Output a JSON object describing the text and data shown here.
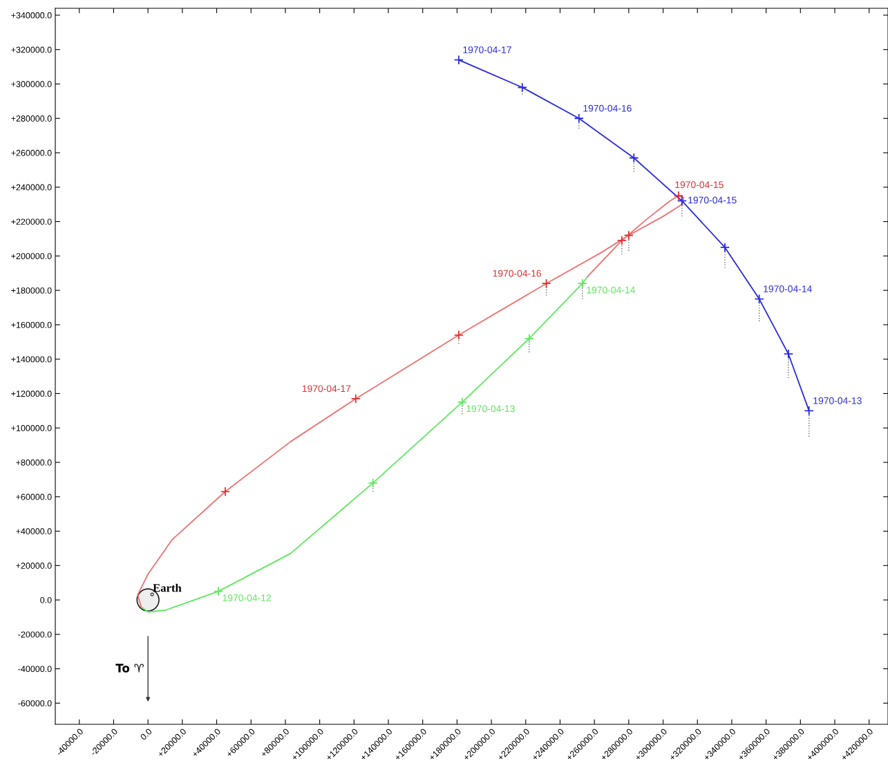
{
  "chart_data": {
    "type": "line",
    "xlim": [
      -54000,
      431000
    ],
    "ylim": [
      -72300,
      344000
    ],
    "xticks": [
      {
        "value": -40000,
        "label": "-40000.0"
      },
      {
        "value": -20000,
        "label": "-20000.0"
      },
      {
        "value": 0,
        "label": "0.0"
      },
      {
        "value": 20000,
        "label": "+20000.0"
      },
      {
        "value": 40000,
        "label": "+40000.0"
      },
      {
        "value": 60000,
        "label": "+60000.0"
      },
      {
        "value": 80000,
        "label": "+80000.0"
      },
      {
        "value": 100000,
        "label": "+100000.0"
      },
      {
        "value": 120000,
        "label": "+120000.0"
      },
      {
        "value": 140000,
        "label": "+140000.0"
      },
      {
        "value": 160000,
        "label": "+160000.0"
      },
      {
        "value": 180000,
        "label": "+180000.0"
      },
      {
        "value": 200000,
        "label": "+200000.0"
      },
      {
        "value": 220000,
        "label": "+220000.0"
      },
      {
        "value": 240000,
        "label": "+240000.0"
      },
      {
        "value": 260000,
        "label": "+260000.0"
      },
      {
        "value": 280000,
        "label": "+280000.0"
      },
      {
        "value": 300000,
        "label": "+300000.0"
      },
      {
        "value": 320000,
        "label": "+320000.0"
      },
      {
        "value": 340000,
        "label": "+340000.0"
      },
      {
        "value": 360000,
        "label": "+360000.0"
      },
      {
        "value": 380000,
        "label": "+380000.0"
      },
      {
        "value": 400000,
        "label": "+400000.0"
      },
      {
        "value": 420000,
        "label": "+420000.0"
      }
    ],
    "yticks": [
      {
        "value": -60000,
        "label": "-60000.0"
      },
      {
        "value": -40000,
        "label": "-40000.0"
      },
      {
        "value": -20000,
        "label": "-20000.0"
      },
      {
        "value": 0,
        "label": "0.0"
      },
      {
        "value": 20000,
        "label": "+20000.0"
      },
      {
        "value": 40000,
        "label": "+40000.0"
      },
      {
        "value": 60000,
        "label": "+60000.0"
      },
      {
        "value": 80000,
        "label": "+80000.0"
      },
      {
        "value": 100000,
        "label": "+100000.0"
      },
      {
        "value": 120000,
        "label": "+120000.0"
      },
      {
        "value": 140000,
        "label": "+140000.0"
      },
      {
        "value": 160000,
        "label": "+160000.0"
      },
      {
        "value": 180000,
        "label": "+180000.0"
      },
      {
        "value": 200000,
        "label": "+200000.0"
      },
      {
        "value": 220000,
        "label": "+220000.0"
      },
      {
        "value": 240000,
        "label": "+240000.0"
      },
      {
        "value": 260000,
        "label": "+260000.0"
      },
      {
        "value": 280000,
        "label": "+280000.0"
      },
      {
        "value": 300000,
        "label": "+300000.0"
      },
      {
        "value": 320000,
        "label": "+320000.0"
      },
      {
        "value": 340000,
        "label": "+340000.0"
      }
    ],
    "grid": false,
    "legend": false,
    "annotations": [
      {
        "text": "Earth",
        "x": 0,
        "y": 0
      },
      "To ♈"
    ],
    "series": [
      {
        "color": "#5ee85e",
        "marker": "none",
        "line_style": "solid",
        "x": [
          -4000,
          0,
          10000,
          41000,
          83000,
          131000,
          183000,
          222000,
          253000,
          256000
        ],
        "values": [
          -4000,
          -7000,
          -6000,
          5000,
          27000,
          68000,
          115000,
          152000,
          184000,
          188000
        ]
      },
      {
        "color": "#f07070",
        "marker": "none",
        "line_style": "solid",
        "x": [
          256000,
          276000,
          290000,
          304000,
          309000,
          312000,
          311000,
          300000,
          280000,
          264000,
          232000,
          181000,
          121000,
          83000,
          45000,
          14000,
          0,
          -6000,
          -4000
        ],
        "values": [
          188000,
          209000,
          221000,
          232000,
          235000,
          234000,
          230000,
          223000,
          212000,
          202000,
          184000,
          154000,
          117000,
          92000,
          63000,
          35000,
          15000,
          3000,
          -4000
        ]
      },
      {
        "color": "#2a2ae0",
        "marker": "cross",
        "line_style": "solid",
        "x": [
          181000,
          218000,
          251000,
          283000,
          311000,
          336000,
          356000,
          373000,
          385000
        ],
        "values": [
          314000,
          298000,
          280000,
          257000,
          232000,
          205000,
          175000,
          143000,
          110000
        ],
        "errors": [
          null,
          [
            294000,
            298000
          ],
          [
            274000,
            280000
          ],
          [
            249000,
            257000
          ],
          [
            223000,
            232000
          ],
          [
            193000,
            205000
          ],
          [
            162000,
            175000
          ],
          [
            129000,
            143000
          ],
          [
            95000,
            110000
          ]
        ],
        "value_labels": [
          "1970-04-17",
          null,
          "1970-04-16",
          null,
          "1970-04-15",
          null,
          "1970-04-14",
          null,
          "1970-04-13"
        ]
      },
      {
        "type": "scatter",
        "color": "#5ee85e",
        "marker": "cross",
        "x": [
          41000,
          131000,
          183000,
          222000,
          253000
        ],
        "values": [
          5000,
          68000,
          115000,
          152000,
          184000
        ],
        "errors": [
          null,
          [
            63000,
            68000
          ],
          [
            108000,
            115000
          ],
          [
            144000,
            152000
          ],
          [
            175000,
            184000
          ]
        ],
        "value_labels": [
          "1970-04-12",
          null,
          "1970-04-13",
          null,
          "1970-04-14"
        ]
      },
      {
        "type": "scatter",
        "color": "#e03030",
        "marker": "cross",
        "x": [
          276000,
          280000,
          309000,
          232000,
          181000,
          121000,
          45000
        ],
        "values": [
          209000,
          212000,
          235000,
          184000,
          154000,
          117000,
          63000
        ],
        "errors": [
          [
            201000,
            209000
          ],
          [
            203000,
            212000
          ],
          null,
          [
            177000,
            184000
          ],
          [
            149000,
            154000
          ],
          null,
          null
        ],
        "value_labels": [
          null,
          null,
          "1970-04-15",
          "1970-04-16",
          null,
          "1970-04-17",
          null
        ]
      }
    ]
  }
}
